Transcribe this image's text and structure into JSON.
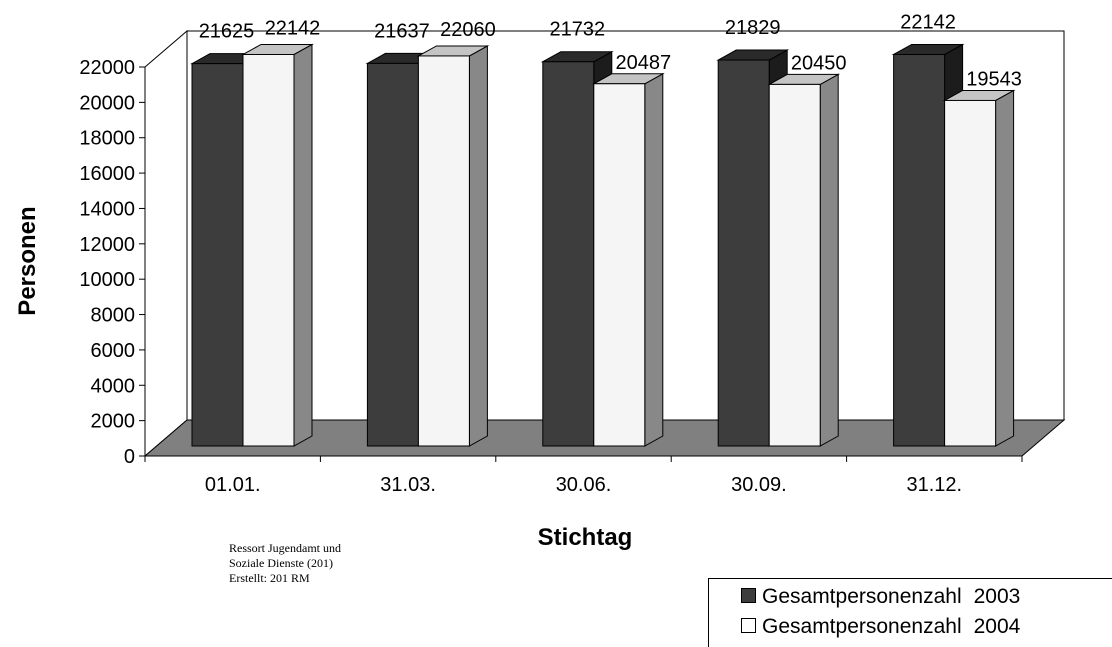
{
  "chart_data": {
    "type": "bar",
    "title": "",
    "xlabel": "Stichtag",
    "ylabel": "Personen",
    "categories": [
      "01.01.",
      "31.03.",
      "30.06.",
      "30.09.",
      "31.12."
    ],
    "series": [
      {
        "name": "Gesamtpersonenzahl 2003",
        "label": "Gesamtpersonenzahl",
        "year": "2003",
        "color": "#3d3d3d",
        "values": [
          21625,
          21637,
          21732,
          21829,
          22142
        ]
      },
      {
        "name": "Gesamtpersonenzahl 2004",
        "label": "Gesamtpersonenzahl",
        "year": "2004",
        "color": "#f4f4f4",
        "values": [
          22142,
          22060,
          20487,
          20450,
          19543
        ]
      }
    ],
    "ylim": [
      0,
      22000
    ],
    "yticks": [
      0,
      2000,
      4000,
      6000,
      8000,
      10000,
      12000,
      14000,
      16000,
      18000,
      20000,
      22000
    ],
    "data_labels": true,
    "grid": false,
    "legend_position": "bottom-right",
    "style": "3d-column"
  },
  "source_note": {
    "line1": "Ressort Jugendamt und",
    "line2": "Soziale Dienste (201)",
    "line3": "Erstellt: 201 RM"
  }
}
